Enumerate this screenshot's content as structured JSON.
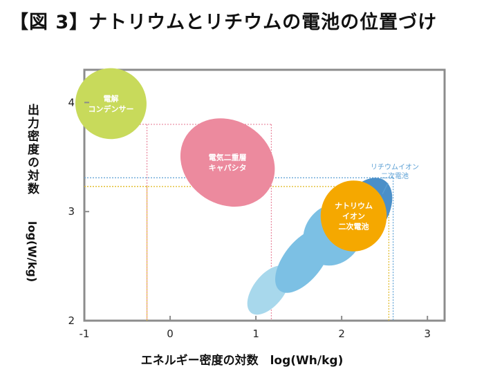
{
  "title": "【図 3】ナトリウムとリチウムの電池の位置づけ",
  "chart_data": {
    "type": "scatter",
    "xlabel": "エネルギー密度の対数　log(Wh/kg)",
    "ylabel_jp": "出力密度の対数",
    "ylabel_unit": "log(W/kg)",
    "xlim": [
      -1,
      3.2
    ],
    "ylim": [
      2,
      4.3
    ],
    "xticks": [
      "-1",
      "0",
      "1",
      "2",
      "3"
    ],
    "yticks": [
      "2",
      "3",
      "4"
    ],
    "grid": false,
    "colors": {
      "capacitor": "#c8da5b",
      "edlc": "#ec8a9e",
      "other_light": "#a8d8ec",
      "other_mid": "#7cc0e4",
      "lithium": "#4a8fc8",
      "sodium": "#f5a800",
      "guide_pink": "#e8829a",
      "guide_blue": "#5a9fd4",
      "guide_yellow": "#e0b81e",
      "frame": "#8c8c8c"
    },
    "regions": [
      {
        "label": "電解\nコンデンサー",
        "cx": -0.69,
        "cy": 3.99,
        "xmin": -1.1,
        "xmax": -0.27,
        "ymin": 3.67,
        "ymax": 4.32,
        "color": "capacitor",
        "label_color": "#ffffff"
      },
      {
        "label": "電気二重層\nキャパシタ",
        "cx": 0.67,
        "cy": 3.45,
        "xmin": 0.1,
        "xmax": 1.2,
        "ymin": 2.99,
        "ymax": 3.8,
        "color": "edlc",
        "label_color": "#ffffff"
      },
      {
        "label": "",
        "cx": 1.15,
        "cy": 2.28,
        "xmin": 0.9,
        "xmax": 1.4,
        "ymin": 2.05,
        "ymax": 2.5,
        "color": "other_light",
        "label_color": "#ffffff"
      },
      {
        "label": "",
        "cx": 1.55,
        "cy": 2.55,
        "xmin": 1.25,
        "xmax": 1.9,
        "ymin": 2.28,
        "ymax": 2.87,
        "color": "other_mid",
        "label_color": "#ffffff"
      },
      {
        "label": "",
        "cx": 1.9,
        "cy": 2.79,
        "xmin": 1.55,
        "xmax": 2.25,
        "ymin": 2.5,
        "ymax": 3.07,
        "color": "other_mid",
        "label_color": "#ffffff"
      },
      {
        "label": "",
        "cx": 2.26,
        "cy": 3.0,
        "xmin": 1.98,
        "xmax": 2.64,
        "ymin": 2.7,
        "ymax": 3.32,
        "color": "lithium",
        "label_color": "#ffffff"
      },
      {
        "label": "ナトリウム\nイオン\n二次電池",
        "cx": 2.14,
        "cy": 2.96,
        "xmin": 1.78,
        "xmax": 2.55,
        "ymin": 2.6,
        "ymax": 3.25,
        "color": "sodium",
        "label_color": "#ffffff"
      }
    ],
    "annotations": [
      {
        "label": "リチウムイオン\n二次電池",
        "x": 2.62,
        "y": 3.3,
        "color": "guide_blue"
      }
    ],
    "guides": [
      {
        "x": -0.27,
        "y": 3.8,
        "color": "guide_pink"
      },
      {
        "x": 1.18,
        "y": 3.8,
        "color": "guide_pink"
      },
      {
        "x": 2.6,
        "y": 3.31,
        "color": "guide_blue"
      },
      {
        "x": 2.55,
        "y": 3.23,
        "color": "guide_yellow"
      },
      {
        "x": -0.27,
        "y": 3.23,
        "color": "guide_yellow"
      }
    ]
  }
}
